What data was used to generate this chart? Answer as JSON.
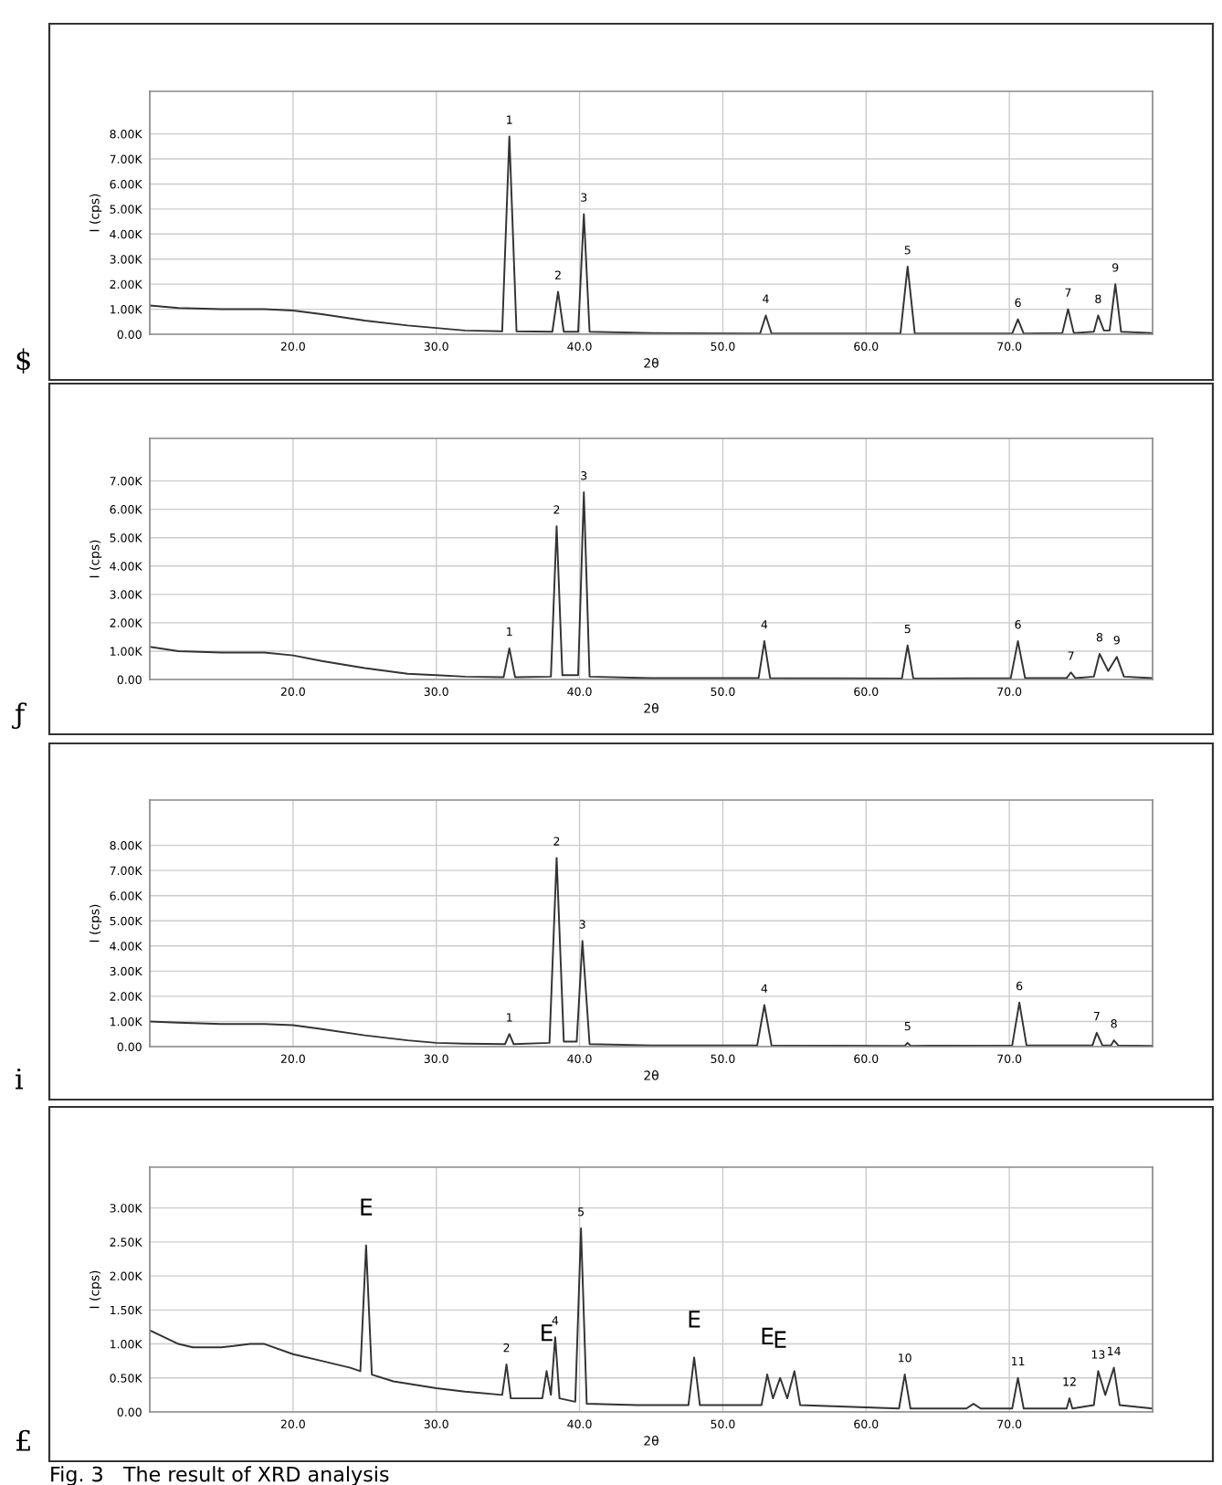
{
  "chart_data": [
    {
      "type": "line",
      "xlabel": "2θ",
      "ylabel": "I (cps)",
      "grid": true,
      "line_style": "solid",
      "marker": "none",
      "xlim": [
        10,
        80
      ],
      "xticks": [
        {
          "value": 20,
          "label": "20.0"
        },
        {
          "value": 30,
          "label": "30.0"
        },
        {
          "value": 40,
          "label": "40.0"
        },
        {
          "value": 50,
          "label": "50.0"
        },
        {
          "value": 60,
          "label": "60.0"
        },
        {
          "value": 70,
          "label": "70.0"
        }
      ],
      "ylim": [
        0,
        9.7
      ],
      "yticks": [
        {
          "value": 0,
          "label": "0.00"
        },
        {
          "value": 1,
          "label": "1.00K"
        },
        {
          "value": 2,
          "label": "2.00K"
        },
        {
          "value": 3,
          "label": "3.00K"
        },
        {
          "value": 4,
          "label": "4.00K"
        },
        {
          "value": 5,
          "label": "5.00K"
        },
        {
          "value": 6,
          "label": "6.00K"
        },
        {
          "value": 7,
          "label": "7.00K"
        },
        {
          "value": 8,
          "label": "8.00K"
        }
      ],
      "series": [
        {
          "color": "#333333",
          "x": [
            10,
            12,
            15,
            18,
            20,
            22,
            25,
            28,
            30,
            32,
            34.6,
            35.1,
            35.6,
            38.1,
            38.5,
            38.9,
            39.9,
            40.3,
            40.7,
            45,
            52.6,
            53.0,
            53.4,
            62.4,
            62.9,
            63.4,
            70.2,
            70.6,
            71.0,
            73.7,
            74.1,
            74.5,
            75.9,
            76.2,
            76.6,
            77.0,
            77.4,
            77.8,
            80
          ],
          "values": [
            1.15,
            1.05,
            1.0,
            1.0,
            0.95,
            0.8,
            0.55,
            0.35,
            0.25,
            0.15,
            0.12,
            7.9,
            0.12,
            0.1,
            1.7,
            0.1,
            0.1,
            4.8,
            0.1,
            0.05,
            0.03,
            0.75,
            0.03,
            0.03,
            2.7,
            0.03,
            0.03,
            0.6,
            0.03,
            0.05,
            1.0,
            0.05,
            0.1,
            0.75,
            0.15,
            0.15,
            2.0,
            0.1,
            0.05
          ]
        }
      ],
      "annotations": [
        "$",
        {
          "text": "1",
          "x": 35.1,
          "y": 7.9
        },
        {
          "text": "2",
          "x": 38.5,
          "y": 1.7
        },
        {
          "text": "3",
          "x": 40.3,
          "y": 4.8
        },
        {
          "text": "4",
          "x": 53.0,
          "y": 0.75
        },
        {
          "text": "5",
          "x": 62.9,
          "y": 2.7
        },
        {
          "text": "6",
          "x": 70.6,
          "y": 0.6
        },
        {
          "text": "7",
          "x": 74.1,
          "y": 1.0
        },
        {
          "text": "8",
          "x": 76.2,
          "y": 0.75
        },
        {
          "text": "9",
          "x": 77.4,
          "y": 2.0
        }
      ]
    },
    {
      "type": "line",
      "xlabel": "2θ",
      "ylabel": "I (cps)",
      "grid": true,
      "line_style": "solid",
      "marker": "none",
      "xlim": [
        10,
        80
      ],
      "xticks": [
        {
          "value": 20,
          "label": "20.0"
        },
        {
          "value": 30,
          "label": "30.0"
        },
        {
          "value": 40,
          "label": "40.0"
        },
        {
          "value": 50,
          "label": "50.0"
        },
        {
          "value": 60,
          "label": "60.0"
        },
        {
          "value": 70,
          "label": "70.0"
        }
      ],
      "ylim": [
        0,
        8.5
      ],
      "yticks": [
        {
          "value": 0,
          "label": "0.00"
        },
        {
          "value": 1,
          "label": "1.00K"
        },
        {
          "value": 2,
          "label": "2.00K"
        },
        {
          "value": 3,
          "label": "3.00K"
        },
        {
          "value": 4,
          "label": "4.00K"
        },
        {
          "value": 5,
          "label": "5.00K"
        },
        {
          "value": 6,
          "label": "6.00K"
        },
        {
          "value": 7,
          "label": "7.00K"
        }
      ],
      "series": [
        {
          "color": "#333333",
          "x": [
            10,
            12,
            15,
            18,
            20,
            22,
            25,
            28,
            30,
            32,
            34.7,
            35.1,
            35.5,
            38.0,
            38.4,
            38.8,
            39.9,
            40.3,
            40.7,
            45,
            52.5,
            52.9,
            53.3,
            62.5,
            62.9,
            63.3,
            70.1,
            70.6,
            71.1,
            74.0,
            74.3,
            74.6,
            75.9,
            76.3,
            76.9,
            77.5,
            78.0,
            80
          ],
          "values": [
            1.15,
            1.0,
            0.95,
            0.95,
            0.85,
            0.65,
            0.4,
            0.2,
            0.15,
            0.1,
            0.08,
            1.1,
            0.08,
            0.1,
            5.4,
            0.15,
            0.15,
            6.6,
            0.1,
            0.05,
            0.05,
            1.35,
            0.05,
            0.03,
            1.2,
            0.03,
            0.05,
            1.35,
            0.05,
            0.05,
            0.25,
            0.05,
            0.1,
            0.9,
            0.3,
            0.8,
            0.1,
            0.05
          ]
        }
      ],
      "annotations": [
        "ƒ",
        {
          "text": "1",
          "x": 35.1,
          "y": 1.1
        },
        {
          "text": "2",
          "x": 38.4,
          "y": 5.4
        },
        {
          "text": "3",
          "x": 40.3,
          "y": 6.6
        },
        {
          "text": "4",
          "x": 52.9,
          "y": 1.35
        },
        {
          "text": "5",
          "x": 62.9,
          "y": 1.2
        },
        {
          "text": "6",
          "x": 70.6,
          "y": 1.35
        },
        {
          "text": "7",
          "x": 74.3,
          "y": 0.25
        },
        {
          "text": "8",
          "x": 76.3,
          "y": 0.9
        },
        {
          "text": "9",
          "x": 77.5,
          "y": 0.8
        }
      ]
    },
    {
      "type": "line",
      "xlabel": "2θ",
      "ylabel": "I (cps)",
      "grid": true,
      "line_style": "solid",
      "marker": "none",
      "xlim": [
        10,
        80
      ],
      "xticks": [
        {
          "value": 20,
          "label": "20.0"
        },
        {
          "value": 30,
          "label": "30.0"
        },
        {
          "value": 40,
          "label": "40.0"
        },
        {
          "value": 50,
          "label": "50.0"
        },
        {
          "value": 60,
          "label": "60.0"
        },
        {
          "value": 70,
          "label": "70.0"
        }
      ],
      "ylim": [
        0,
        9.8
      ],
      "yticks": [
        {
          "value": 0,
          "label": "0.00"
        },
        {
          "value": 1,
          "label": "1.00K"
        },
        {
          "value": 2,
          "label": "2.00K"
        },
        {
          "value": 3,
          "label": "3.00K"
        },
        {
          "value": 4,
          "label": "4.00K"
        },
        {
          "value": 5,
          "label": "5.00K"
        },
        {
          "value": 6,
          "label": "6.00K"
        },
        {
          "value": 7,
          "label": "7.00K"
        },
        {
          "value": 8,
          "label": "8.00K"
        }
      ],
      "series": [
        {
          "color": "#333333",
          "x": [
            10,
            12,
            15,
            18,
            20,
            22,
            25,
            28,
            30,
            32,
            34.8,
            35.1,
            35.4,
            37.9,
            38.4,
            38.9,
            39.8,
            40.2,
            40.7,
            45,
            52.4,
            52.9,
            53.4,
            62.7,
            62.9,
            63.1,
            70.2,
            70.7,
            71.2,
            75.8,
            76.1,
            76.5,
            77.1,
            77.3,
            77.6,
            80
          ],
          "values": [
            1.0,
            0.95,
            0.9,
            0.9,
            0.85,
            0.7,
            0.45,
            0.25,
            0.15,
            0.12,
            0.1,
            0.5,
            0.1,
            0.15,
            7.5,
            0.2,
            0.2,
            4.2,
            0.1,
            0.05,
            0.05,
            1.65,
            0.05,
            0.03,
            0.15,
            0.03,
            0.05,
            1.75,
            0.05,
            0.05,
            0.55,
            0.05,
            0.05,
            0.25,
            0.05,
            0.03
          ]
        }
      ],
      "annotations": [
        "i",
        {
          "text": "1",
          "x": 35.1,
          "y": 0.5
        },
        {
          "text": "2",
          "x": 38.4,
          "y": 7.5
        },
        {
          "text": "3",
          "x": 40.2,
          "y": 4.2
        },
        {
          "text": "4",
          "x": 52.9,
          "y": 1.65
        },
        {
          "text": "5",
          "x": 62.9,
          "y": 0.15
        },
        {
          "text": "6",
          "x": 70.7,
          "y": 1.75
        },
        {
          "text": "7",
          "x": 76.1,
          "y": 0.55
        },
        {
          "text": "8",
          "x": 77.3,
          "y": 0.25
        }
      ]
    },
    {
      "type": "line",
      "xlabel": "2θ",
      "ylabel": "I (cps)",
      "grid": true,
      "line_style": "solid",
      "marker": "none",
      "xlim": [
        10,
        80
      ],
      "xticks": [
        {
          "value": 20,
          "label": "20.0"
        },
        {
          "value": 30,
          "label": "30.0"
        },
        {
          "value": 40,
          "label": "40.0"
        },
        {
          "value": 50,
          "label": "50.0"
        },
        {
          "value": 60,
          "label": "60.0"
        },
        {
          "value": 70,
          "label": "70.0"
        }
      ],
      "ylim": [
        0,
        3.6
      ],
      "yticks": [
        {
          "value": 0,
          "label": "0.00"
        },
        {
          "value": 0.5,
          "label": "0.50K"
        },
        {
          "value": 1,
          "label": "1.00K"
        },
        {
          "value": 1.5,
          "label": "1.50K"
        },
        {
          "value": 2,
          "label": "2.00K"
        },
        {
          "value": 2.5,
          "label": "2.50K"
        },
        {
          "value": 3,
          "label": "3.00K"
        }
      ],
      "series": [
        {
          "color": "#333333",
          "x": [
            10,
            11,
            12,
            13,
            15,
            17,
            18,
            20,
            22,
            24,
            24.7,
            25.1,
            25.5,
            27,
            30,
            32,
            34.6,
            34.9,
            35.2,
            37.4,
            37.7,
            38.0,
            38.3,
            38.6,
            39.7,
            40.1,
            40.5,
            44,
            47.6,
            48.0,
            48.4,
            52.7,
            53.1,
            53.5,
            54.0,
            54.5,
            55.0,
            55.4,
            62.3,
            62.7,
            63.1,
            67,
            67.5,
            68,
            70.2,
            70.6,
            71.0,
            74.0,
            74.2,
            74.4,
            75.9,
            76.2,
            76.7,
            77.3,
            77.7,
            80
          ],
          "values": [
            1.2,
            1.1,
            1.0,
            0.95,
            0.95,
            1.0,
            1.0,
            0.85,
            0.75,
            0.65,
            0.6,
            2.45,
            0.55,
            0.45,
            0.35,
            0.3,
            0.25,
            0.7,
            0.2,
            0.2,
            0.6,
            0.25,
            1.1,
            0.2,
            0.15,
            2.7,
            0.12,
            0.1,
            0.1,
            0.8,
            0.1,
            0.1,
            0.55,
            0.2,
            0.5,
            0.2,
            0.6,
            0.1,
            0.05,
            0.55,
            0.05,
            0.05,
            0.12,
            0.05,
            0.05,
            0.5,
            0.05,
            0.05,
            0.2,
            0.05,
            0.1,
            0.6,
            0.25,
            0.65,
            0.1,
            0.05
          ]
        }
      ],
      "annotations": [
        "£",
        "Fig. 3   The result of XRD analysis",
        {
          "text": "E",
          "x": 25.1,
          "y": 2.45
        },
        {
          "text": "2",
          "x": 34.9,
          "y": 0.7
        },
        {
          "text": "E",
          "x": 37.7,
          "y": 0.6
        },
        {
          "text": "4",
          "x": 38.3,
          "y": 1.1
        },
        {
          "text": "5",
          "x": 40.1,
          "y": 2.7
        },
        {
          "text": "E",
          "x": 48.0,
          "y": 0.8
        },
        {
          "text": "E",
          "x": 53.1,
          "y": 0.55
        },
        {
          "text": "E",
          "x": 54.0,
          "y": 0.5
        },
        {
          "text": "10",
          "x": 62.7,
          "y": 0.55
        },
        {
          "text": "11",
          "x": 70.6,
          "y": 0.5
        },
        {
          "text": "12",
          "x": 74.2,
          "y": 0.2
        },
        {
          "text": "13",
          "x": 76.2,
          "y": 0.6
        },
        {
          "text": "14",
          "x": 77.3,
          "y": 0.65
        }
      ]
    }
  ]
}
